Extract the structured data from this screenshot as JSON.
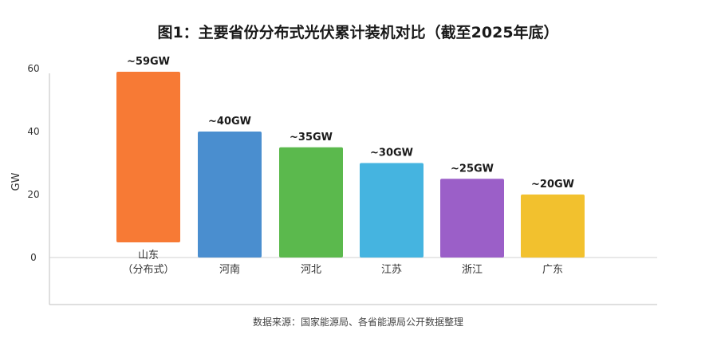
{
  "chart_data": {
    "type": "bar",
    "title": "图1：主要省份分布式光伏累计装机对比（截至2025年底）",
    "ylabel": "GW",
    "xlabel": "",
    "ylim": [
      0,
      60
    ],
    "yticks": [
      "0",
      "20",
      "40",
      "60"
    ],
    "grid": false,
    "categories": [
      [
        "山东",
        "（分布式）"
      ],
      [
        "河南"
      ],
      [
        "河北"
      ],
      [
        "江苏"
      ],
      [
        "浙江"
      ],
      [
        "广东"
      ]
    ],
    "values": [
      59,
      40,
      35,
      30,
      25,
      20
    ],
    "data_labels": [
      "~59GW",
      "~40GW",
      "~35GW",
      "~30GW",
      "~25GW",
      "~20GW"
    ],
    "colors": [
      "#F77A35",
      "#4A8ECF",
      "#5BB94D",
      "#45B4E0",
      "#9B5FC8",
      "#F2C12E"
    ],
    "source": "数据来源：国家能源局、各省能源局公开数据整理"
  }
}
